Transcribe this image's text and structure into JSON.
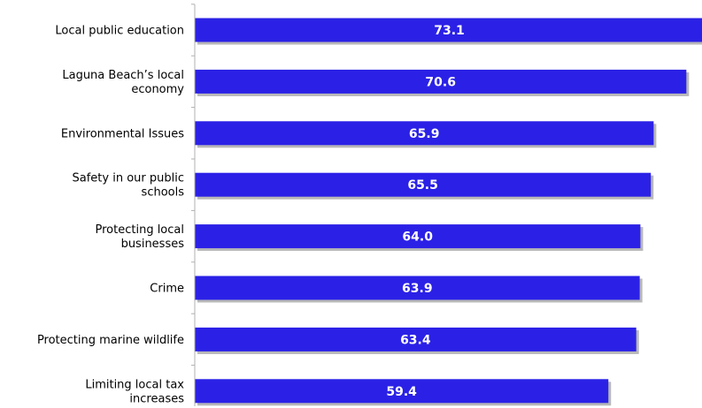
{
  "chart_data": {
    "type": "bar",
    "orientation": "horizontal",
    "categories": [
      [
        "Local public education"
      ],
      [
        "Laguna Beach’s local",
        "economy"
      ],
      [
        "Environmental Issues"
      ],
      [
        "Safety in our public",
        "schools"
      ],
      [
        "Protecting local",
        "businesses"
      ],
      [
        "Crime"
      ],
      [
        "Protecting marine wildlife"
      ],
      [
        "Limiting local tax",
        "increases"
      ]
    ],
    "values": [
      73.1,
      70.6,
      65.9,
      65.5,
      64.0,
      63.9,
      63.4,
      59.4
    ],
    "value_labels": [
      "73.1",
      "70.6",
      "65.9",
      "65.5",
      "64.0",
      "63.9",
      "63.4",
      "59.4"
    ],
    "xlim": [
      0,
      78
    ],
    "grid": false,
    "legend": "none",
    "colors": {
      "bar": "#2b21e6",
      "bar_shadow": "#9a9a9a",
      "axis": "#b0b0b0",
      "value_text": "#ffffff",
      "label_text": "#000000"
    }
  }
}
